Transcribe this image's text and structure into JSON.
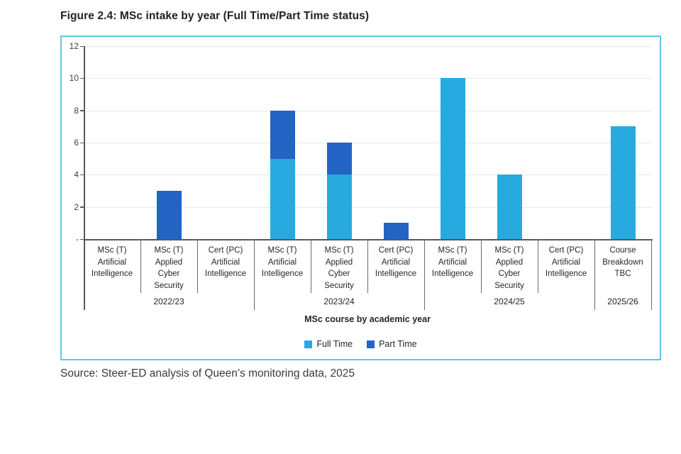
{
  "figure": {
    "title": "Figure 2.4: MSc intake by year (Full Time/Part Time status)",
    "source": "Source: Steer-ED analysis of Queen’s monitoring data, 2025",
    "panel_border_color": "#5ec6e8"
  },
  "chart_data": {
    "type": "bar",
    "stacked": true,
    "title": "Figure 2.4: MSc intake by year (Full Time/Part Time status)",
    "xlabel": "MSc course by academic year",
    "ylabel": "",
    "ylim": [
      0,
      12
    ],
    "yticks": [
      0,
      2,
      4,
      6,
      8,
      10,
      12
    ],
    "ytick_labels": [
      "-",
      "2",
      "4",
      "6",
      "8",
      "10",
      "12"
    ],
    "grid": true,
    "grid_color": "#e3e7ee",
    "axis_color": "#595959",
    "legend_position": "bottom",
    "categories": [
      [
        "MSc (T)",
        "Artificial",
        "Intelligence"
      ],
      [
        "MSc (T)",
        "Applied",
        "Cyber",
        "Security"
      ],
      [
        "Cert (PC)",
        "Artificial",
        "Intelligence"
      ],
      [
        "MSc (T)",
        "Artificial",
        "Intelligence"
      ],
      [
        "MSc (T)",
        "Applied",
        "Cyber",
        "Security"
      ],
      [
        "Cert (PC)",
        "Artificial",
        "Intelligence"
      ],
      [
        "MSc (T)",
        "Artificial",
        "Intelligence"
      ],
      [
        "MSc (T)",
        "Applied",
        "Cyber",
        "Security"
      ],
      [
        "Cert (PC)",
        "Artificial",
        "Intelligence"
      ],
      [
        "Course",
        "Breakdown",
        "TBC"
      ]
    ],
    "groups": [
      {
        "label": "2022/23",
        "span": 3
      },
      {
        "label": "2023/24",
        "span": 3
      },
      {
        "label": "2024/25",
        "span": 3
      },
      {
        "label": "2025/26",
        "span": 1
      }
    ],
    "series": [
      {
        "name": "Full Time",
        "color": "#27aadf",
        "values": [
          0,
          0,
          0,
          5,
          4,
          0,
          10,
          4,
          0,
          7
        ]
      },
      {
        "name": "Part Time",
        "color": "#2363c4",
        "values": [
          0,
          3,
          0,
          3,
          2,
          1,
          0,
          0,
          0,
          0
        ]
      }
    ]
  }
}
